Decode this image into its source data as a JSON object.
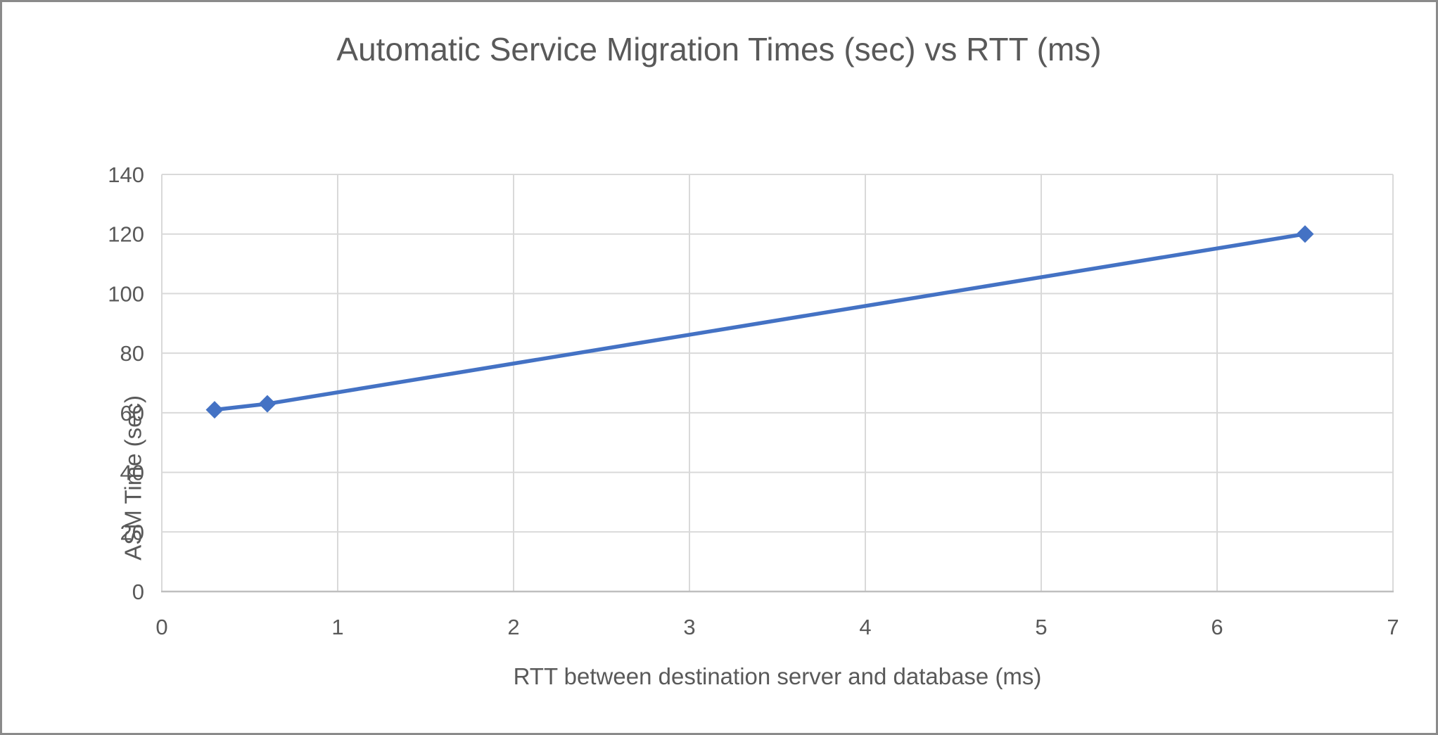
{
  "chart_data": {
    "type": "line",
    "title": "Automatic Service Migration Times (sec) vs RTT (ms)",
    "xlabel": "RTT between destination server and database (ms)",
    "ylabel": "ASM Time (sec)",
    "xlim": [
      0,
      7
    ],
    "ylim": [
      0,
      140
    ],
    "xticks": [
      0,
      1,
      2,
      3,
      4,
      5,
      6,
      7
    ],
    "yticks": [
      0,
      20,
      40,
      60,
      80,
      100,
      120,
      140
    ],
    "grid": true,
    "legend_position": "none",
    "series": [
      {
        "name": "ASM Time (sec)",
        "marker": "diamond",
        "color": "#4472C4",
        "points": [
          {
            "x": 0.3,
            "y": 61
          },
          {
            "x": 0.6,
            "y": 63
          },
          {
            "x": 6.5,
            "y": 120
          }
        ]
      }
    ],
    "colors": {
      "text": "#595959",
      "gridline": "#D9D9D9",
      "axis_line": "#BFBFBF",
      "series_blue": "#4472C4",
      "frame_border": "#8A8A8A",
      "background": "#FFFFFF"
    }
  }
}
